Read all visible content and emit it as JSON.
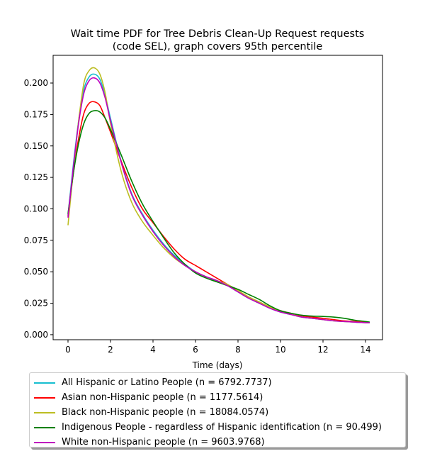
{
  "chart_data": {
    "type": "line",
    "title_lines": [
      "Wait time PDF for Tree Debris Clean-Up Request  requests",
      "(code SEL), graph covers 95th percentile"
    ],
    "xlabel": "Time (days)",
    "ylabel": "",
    "xlim": [
      -0.7,
      14.8
    ],
    "ylim": [
      -0.004,
      0.222
    ],
    "xticks": [
      0,
      2,
      4,
      6,
      8,
      10,
      12,
      14
    ],
    "xtick_labels": [
      "0",
      "2",
      "4",
      "6",
      "8",
      "10",
      "12",
      "14"
    ],
    "yticks": [
      0.0,
      0.025,
      0.05,
      0.075,
      0.1,
      0.125,
      0.15,
      0.175,
      0.2
    ],
    "ytick_labels": [
      "0.000",
      "0.025",
      "0.050",
      "0.075",
      "0.100",
      "0.125",
      "0.150",
      "0.175",
      "0.200"
    ],
    "grid": false,
    "legend_position": "below",
    "x": [
      0,
      0.25,
      0.5,
      0.75,
      1.0,
      1.25,
      1.5,
      1.75,
      2.0,
      2.5,
      3.0,
      3.5,
      4.0,
      4.5,
      5.0,
      5.5,
      6.0,
      6.5,
      7.0,
      7.5,
      8.0,
      8.5,
      9.0,
      9.5,
      10.0,
      10.5,
      11.0,
      11.5,
      12.0,
      12.5,
      13.0,
      13.5,
      14.0,
      14.2
    ],
    "series": [
      {
        "name": "All Hispanic or Latino People (n = 6792.7737)",
        "color": "#17becf",
        "values": [
          0.095,
          0.135,
          0.17,
          0.195,
          0.205,
          0.207,
          0.203,
          0.19,
          0.172,
          0.138,
          0.112,
          0.096,
          0.083,
          0.072,
          0.063,
          0.056,
          0.05,
          0.046,
          0.043,
          0.039,
          0.034,
          0.029,
          0.025,
          0.021,
          0.018,
          0.016,
          0.014,
          0.013,
          0.012,
          0.011,
          0.0105,
          0.01,
          0.0095,
          0.0095
        ]
      },
      {
        "name": "Asian non-Hispanic people (n = 1177.5614)",
        "color": "#ff0000",
        "values": [
          0.094,
          0.128,
          0.156,
          0.176,
          0.184,
          0.185,
          0.182,
          0.172,
          0.161,
          0.138,
          0.117,
          0.1,
          0.089,
          0.078,
          0.068,
          0.06,
          0.055,
          0.05,
          0.045,
          0.04,
          0.035,
          0.03,
          0.026,
          0.022,
          0.019,
          0.017,
          0.015,
          0.014,
          0.013,
          0.012,
          0.011,
          0.0105,
          0.01,
          0.0098
        ]
      },
      {
        "name": "Black non-Hispanic people (n = 18084.0574)",
        "color": "#bcbd22",
        "values": [
          0.087,
          0.13,
          0.17,
          0.2,
          0.21,
          0.212,
          0.207,
          0.192,
          0.168,
          0.13,
          0.105,
          0.09,
          0.079,
          0.069,
          0.061,
          0.055,
          0.05,
          0.046,
          0.043,
          0.04,
          0.035,
          0.03,
          0.026,
          0.022,
          0.019,
          0.016,
          0.014,
          0.013,
          0.012,
          0.011,
          0.0105,
          0.01,
          0.0095,
          0.0095
        ]
      },
      {
        "name": "Indigenous People - regardless of Hispanic identification (n = 90.499)",
        "color": "#008000",
        "values": [
          0.096,
          0.128,
          0.152,
          0.168,
          0.176,
          0.178,
          0.177,
          0.172,
          0.163,
          0.143,
          0.122,
          0.104,
          0.09,
          0.077,
          0.065,
          0.056,
          0.049,
          0.045,
          0.042,
          0.039,
          0.036,
          0.032,
          0.028,
          0.023,
          0.019,
          0.017,
          0.0155,
          0.0148,
          0.0145,
          0.014,
          0.013,
          0.0115,
          0.0105,
          0.01
        ]
      },
      {
        "name": "White non-Hispanic people (n = 9603.9768)",
        "color": "#bf00bf",
        "values": [
          0.093,
          0.133,
          0.168,
          0.192,
          0.202,
          0.204,
          0.2,
          0.188,
          0.17,
          0.137,
          0.111,
          0.095,
          0.082,
          0.071,
          0.062,
          0.055,
          0.05,
          0.046,
          0.043,
          0.039,
          0.034,
          0.029,
          0.025,
          0.021,
          0.018,
          0.016,
          0.014,
          0.013,
          0.012,
          0.011,
          0.0105,
          0.01,
          0.0095,
          0.0095
        ]
      }
    ]
  }
}
